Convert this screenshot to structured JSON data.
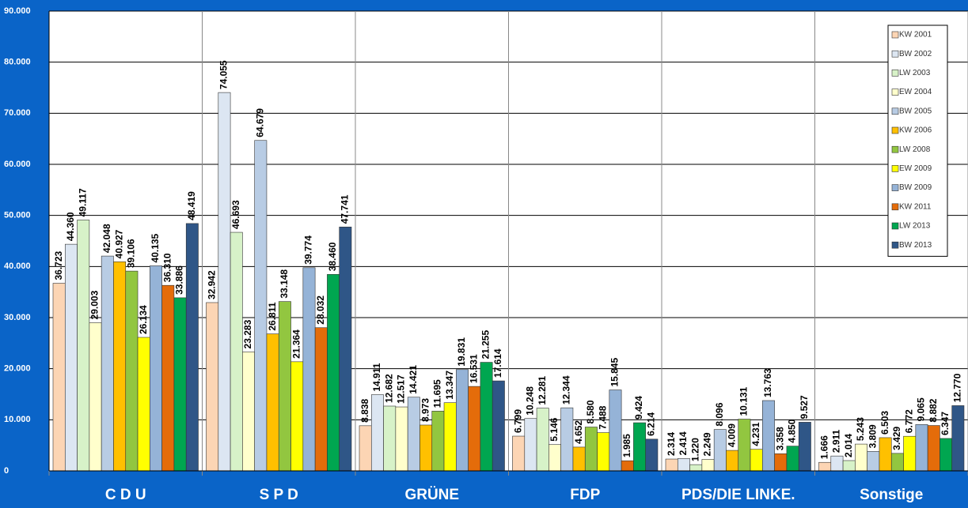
{
  "chart_data": {
    "type": "bar",
    "categories": [
      "C D U",
      "S P D",
      "GRÜNE",
      "FDP",
      "PDS/DIE LINKE.",
      "Sonstige"
    ],
    "ylim": [
      0,
      90000
    ],
    "yticks": [
      {
        "value": 0,
        "label": "0"
      },
      {
        "value": 10000,
        "label": "10.000"
      },
      {
        "value": 20000,
        "label": "20.000"
      },
      {
        "value": 30000,
        "label": "30.000"
      },
      {
        "value": 40000,
        "label": "40.000"
      },
      {
        "value": 50000,
        "label": "50.000"
      },
      {
        "value": 60000,
        "label": "60.000"
      },
      {
        "value": 70000,
        "label": "70.000"
      },
      {
        "value": 80000,
        "label": "80.000"
      },
      {
        "value": 90000,
        "label": "90.000"
      }
    ],
    "grid": true,
    "legend": "upper right",
    "series": [
      {
        "name": "KW 2001",
        "color": "#fcd5b4",
        "values": [
          36723,
          32942,
          8838,
          6799,
          2314,
          1666
        ],
        "value_labels": [
          "36.723",
          "32.942",
          "8.838",
          "6.799",
          "2.314",
          "1.666"
        ]
      },
      {
        "name": "BW 2002",
        "color": "#dce6f2",
        "values": [
          44360,
          74055,
          14911,
          10248,
          2414,
          2911
        ],
        "value_labels": [
          "44.360",
          "74.055",
          "14.911",
          "10.248",
          "2.414",
          "2.911"
        ]
      },
      {
        "name": "LW 2003",
        "color": "#d7f2c8",
        "values": [
          49117,
          46693,
          12682,
          12281,
          1220,
          2014
        ],
        "value_labels": [
          "49.117",
          "46.693",
          "12.682",
          "12.281",
          "1.220",
          "2.014"
        ]
      },
      {
        "name": "EW 2004",
        "color": "#ffffcc",
        "values": [
          29003,
          23283,
          12517,
          5146,
          2249,
          5243
        ],
        "value_labels": [
          "29.003",
          "23.283",
          "12.517",
          "5.146",
          "2.249",
          "5.243"
        ]
      },
      {
        "name": "BW 2005",
        "color": "#b8cce4",
        "values": [
          42048,
          64679,
          14421,
          12344,
          8096,
          3809
        ],
        "value_labels": [
          "42.048",
          "64.679",
          "14.421",
          "12.344",
          "8.096",
          "3.809"
        ]
      },
      {
        "name": "KW 2006",
        "color": "#ffc000",
        "values": [
          40927,
          26811,
          8973,
          4652,
          4009,
          6503
        ],
        "value_labels": [
          "40.927",
          "26.811",
          "8.973",
          "4.652",
          "4.009",
          "6.503"
        ]
      },
      {
        "name": "LW 2008",
        "color": "#92c640",
        "values": [
          39106,
          33148,
          11695,
          8580,
          10131,
          3429
        ],
        "value_labels": [
          "39.106",
          "33.148",
          "11.695",
          "8.580",
          "10.131",
          "3.429"
        ]
      },
      {
        "name": "EW 2009",
        "color": "#ffff00",
        "values": [
          26134,
          21364,
          13347,
          7488,
          4231,
          6772
        ],
        "value_labels": [
          "26.134",
          "21.364",
          "13.347",
          "7.488",
          "4.231",
          "6.772"
        ]
      },
      {
        "name": "BW 2009",
        "color": "#95b3d7",
        "values": [
          40135,
          39774,
          19831,
          15845,
          13763,
          9065
        ],
        "value_labels": [
          "40.135",
          "39.774",
          "19.831",
          "15.845",
          "13.763",
          "9.065"
        ]
      },
      {
        "name": "KW 2011",
        "color": "#e46c0a",
        "values": [
          36310,
          28032,
          16531,
          1985,
          3358,
          8882
        ],
        "value_labels": [
          "36.310",
          "28.032",
          "16.531",
          "1.985",
          "3.358",
          "8.882"
        ]
      },
      {
        "name": "LW 2013",
        "color": "#00a650",
        "values": [
          33886,
          38460,
          21255,
          9424,
          4850,
          6347
        ],
        "value_labels": [
          "33.886",
          "38.460",
          "21.255",
          "9.424",
          "4.850",
          "6.347"
        ]
      },
      {
        "name": "BW 2013",
        "color": "#2f5687",
        "values": [
          48419,
          47741,
          17614,
          6214,
          9527,
          12770
        ],
        "value_labels": [
          "48.419",
          "47.741",
          "17.614",
          "6.214",
          "9.527",
          "12.770"
        ]
      }
    ]
  }
}
